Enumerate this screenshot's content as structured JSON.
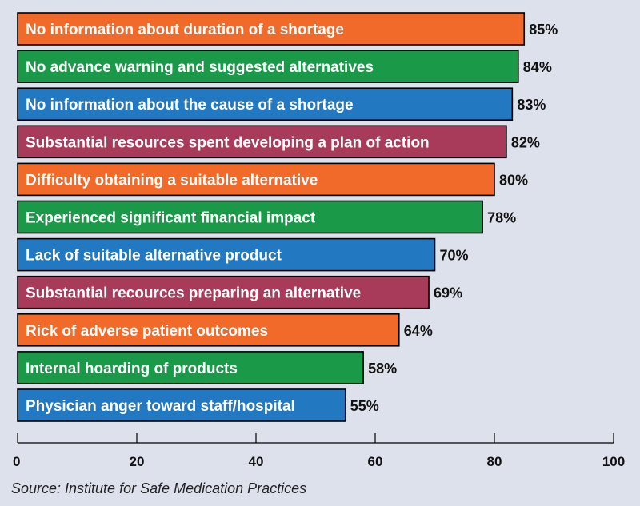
{
  "chart_data": {
    "type": "bar",
    "orientation": "horizontal",
    "categories": [
      "No information about duration of a shortage",
      "No advance warning and suggested alternatives",
      "No information about the cause of a shortage",
      "Substantial resources spent developing a plan of action",
      "Difficulty obtaining a suitable alternative",
      "Experienced significant financial impact",
      "Lack of suitable alternative product",
      "Substantial recources preparing an alternative",
      "Rick of adverse patient outcomes",
      "Internal hoarding of products",
      "Physician anger toward staff/hospital"
    ],
    "values": [
      85,
      84,
      83,
      82,
      80,
      78,
      70,
      69,
      64,
      58,
      55
    ],
    "value_labels": [
      "85%",
      "84%",
      "83%",
      "82%",
      "80%",
      "78%",
      "70%",
      "69%",
      "64%",
      "58%",
      "55%"
    ],
    "bar_colors": [
      "#f26a2a",
      "#1a9a48",
      "#2378c2",
      "#a83a5a",
      "#f26a2a",
      "#1a9a48",
      "#2378c2",
      "#a83a5a",
      "#f26a2a",
      "#1a9a48",
      "#2378c2"
    ],
    "xlim": [
      0,
      100
    ],
    "xticks": [
      0,
      20,
      40,
      60,
      80,
      100
    ],
    "xtick_labels": [
      "0",
      "20",
      "40",
      "60",
      "80",
      "100"
    ],
    "title": "",
    "xlabel": "",
    "ylabel": "",
    "grid": false,
    "legend": false
  },
  "source": "Source: Institute for Safe Medication Practices",
  "colors": {
    "background": "#dde1ec",
    "orange": "#f26a2a",
    "green": "#1a9a48",
    "blue": "#2378c2",
    "maroon": "#a83a5a"
  }
}
